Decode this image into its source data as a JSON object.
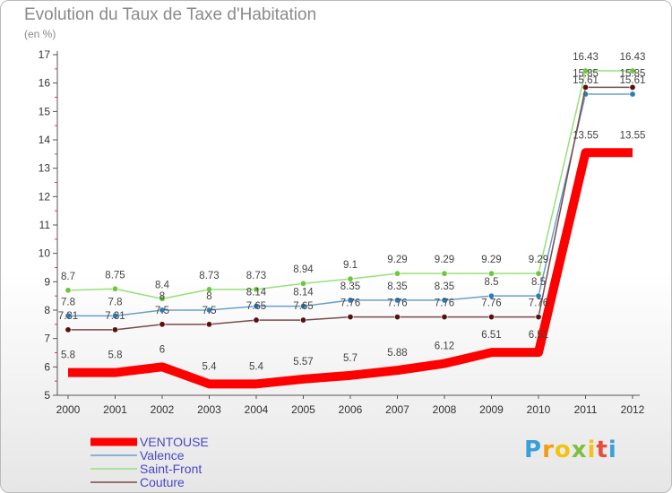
{
  "title": "Evolution du Taux de Taxe d'Habitation",
  "unit_label": "(en %)",
  "logo": {
    "text": "Proxiti",
    "letters": [
      "P",
      "r",
      "o",
      "x",
      "i",
      "t",
      "i"
    ],
    "colors": [
      "#3aa0d8",
      "#f39c12",
      "#f1c40f",
      "#7fbf3f",
      "#f3c31b",
      "#e74c3c",
      "#3aa0d8"
    ]
  },
  "chart_data": {
    "type": "line",
    "title": "Evolution du Taux de Taxe d'Habitation",
    "ylabel": "(en %)",
    "xlabel": "",
    "x": [
      "2000",
      "2001",
      "2002",
      "2003",
      "2004",
      "2005",
      "2006",
      "2007",
      "2008",
      "2009",
      "2010",
      "2011",
      "2012"
    ],
    "ylim": [
      5,
      17
    ],
    "yticks": [
      "5",
      "6",
      "7",
      "8",
      "9",
      "10",
      "11",
      "12",
      "13",
      "14",
      "15",
      "16",
      "17"
    ],
    "grid": false,
    "legend_position": "bottom-left",
    "series": [
      {
        "name": "VENTOUSE",
        "color": "#ff0000",
        "marker_color": "#ff0000",
        "values": [
          5.8,
          5.8,
          6,
          5.4,
          5.4,
          5.57,
          5.7,
          5.88,
          6.12,
          6.51,
          6.51,
          13.55,
          13.55
        ],
        "labels": [
          "5.8",
          "5.8",
          "6",
          "5.4",
          "5.4",
          "5.57",
          "5.7",
          "5.88",
          "6.12",
          "6.51",
          "6.51",
          "13.55",
          "13.55"
        ]
      },
      {
        "name": "Valence",
        "color": "#6a9fca",
        "marker_color": "#2f7ab8",
        "values": [
          7.8,
          7.8,
          8,
          8,
          8.14,
          8.14,
          8.35,
          8.35,
          8.35,
          8.5,
          8.5,
          15.61,
          15.61
        ],
        "labels": [
          "7.8",
          "7.8",
          "8",
          "8",
          "8.14",
          "8.14",
          "8.35",
          "8.35",
          "8.35",
          "8.5",
          "8.5",
          "15.61",
          "15.61"
        ]
      },
      {
        "name": "Saint-Front",
        "color": "#97e07a",
        "marker_color": "#6dc63c",
        "values": [
          8.7,
          8.75,
          8.4,
          8.73,
          8.73,
          8.94,
          9.1,
          9.29,
          9.29,
          9.29,
          9.29,
          16.43,
          16.43
        ],
        "labels": [
          "8.7",
          "8.75",
          "8.4",
          "8.73",
          "8.73",
          "8.94",
          "9.1",
          "9.29",
          "9.29",
          "9.29",
          "9.29",
          "16.43",
          "16.43"
        ]
      },
      {
        "name": "Couture",
        "color": "#7a4a4a",
        "marker_color": "#5a1010",
        "values": [
          7.31,
          7.31,
          7.5,
          7.5,
          7.65,
          7.65,
          7.76,
          7.76,
          7.76,
          7.76,
          7.76,
          15.85,
          15.85
        ],
        "labels": [
          "7.31",
          "7.31",
          "7.5",
          "7.5",
          "7.65",
          "7.65",
          "7.76",
          "7.76",
          "7.76",
          "7.76",
          "7.76",
          "15.85",
          "15.85"
        ]
      }
    ]
  }
}
